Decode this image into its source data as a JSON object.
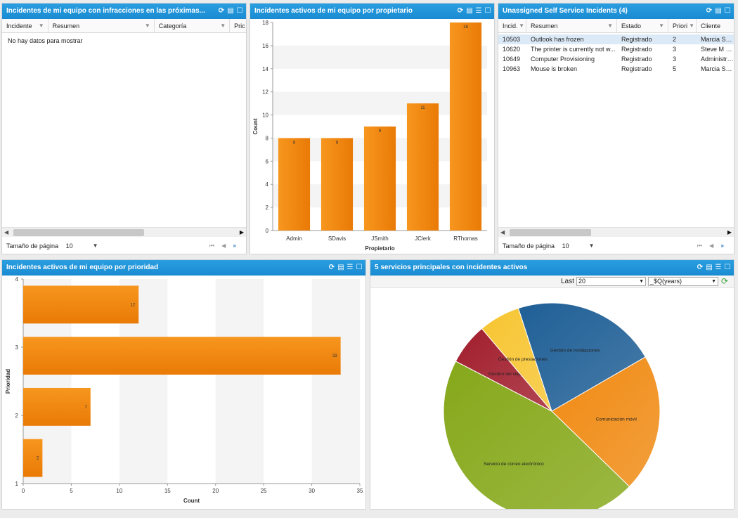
{
  "panel1": {
    "title": "Incidentes de mi equipo con infracciones en las próximas...",
    "columns": [
      "Incidente",
      "Resumen",
      "Categoría",
      "Pric"
    ],
    "empty_text": "No hay datos para mostrar",
    "page_size_label": "Tamaño de página",
    "page_size_value": "10"
  },
  "panel2": {
    "title": "Incidentes activos de mi equipo por propietario",
    "chart_data": {
      "type": "bar",
      "categories": [
        "Admin",
        "SDavis",
        "JSmith",
        "JClerk",
        "RThomas"
      ],
      "values": [
        8,
        8,
        9,
        11,
        18
      ],
      "xlabel": "Propietario",
      "ylabel": "Count",
      "ylim": [
        0,
        18
      ],
      "yticks": [
        0,
        2,
        4,
        6,
        8,
        10,
        12,
        14,
        16,
        18
      ],
      "color": "#f28a1a"
    }
  },
  "panel3": {
    "title": "Unassigned Self Service Incidents (4)",
    "columns": [
      "Incid.",
      "Resumen",
      "Estado",
      "Priori",
      "Cliente"
    ],
    "rows": [
      [
        "10503",
        "Outlook has frozen",
        "Registrado",
        "2",
        "Marcia S He"
      ],
      [
        "10620",
        "The printer is currently not w...",
        "Registrado",
        "3",
        "Steve M Sch"
      ],
      [
        "10649",
        "Computer Provisioning",
        "Registrado",
        "3",
        "Administrato"
      ],
      [
        "10963",
        "Mouse is broken",
        "Registrado",
        "5",
        "Marcia S He"
      ]
    ],
    "page_size_label": "Tamaño de página",
    "page_size_value": "10"
  },
  "panel4": {
    "title": "Incidentes activos de mi equipo por prioridad",
    "chart_data": {
      "type": "bar",
      "orientation": "horizontal",
      "categories": [
        "4",
        "3",
        "2",
        "1"
      ],
      "values": [
        12,
        33,
        7,
        2
      ],
      "xlabel": "Count",
      "ylabel": "Prioridad",
      "xlim": [
        0,
        35
      ],
      "xticks": [
        0,
        5,
        10,
        15,
        20,
        25,
        30,
        35
      ],
      "yticks": [
        "1",
        "2",
        "3",
        "4"
      ],
      "color": "#f28a1a"
    }
  },
  "panel5": {
    "title": "5 servicios principales con incidentes activos",
    "last_label": "Last",
    "last_value": "20",
    "period_value": "_$Q(years)",
    "chart_data": {
      "type": "pie",
      "labels": [
        "Gestión de instalaciones",
        "Comunicación móvil",
        "Servicio de correo electrónico",
        "Gestión del viaje",
        "Gestión de prestaciones"
      ],
      "values": [
        21,
        20,
        44,
        6,
        6
      ],
      "colors": [
        "#1f5f96",
        "#f08a12",
        "#86a81a",
        "#a11d2c",
        "#f7c531"
      ]
    }
  }
}
